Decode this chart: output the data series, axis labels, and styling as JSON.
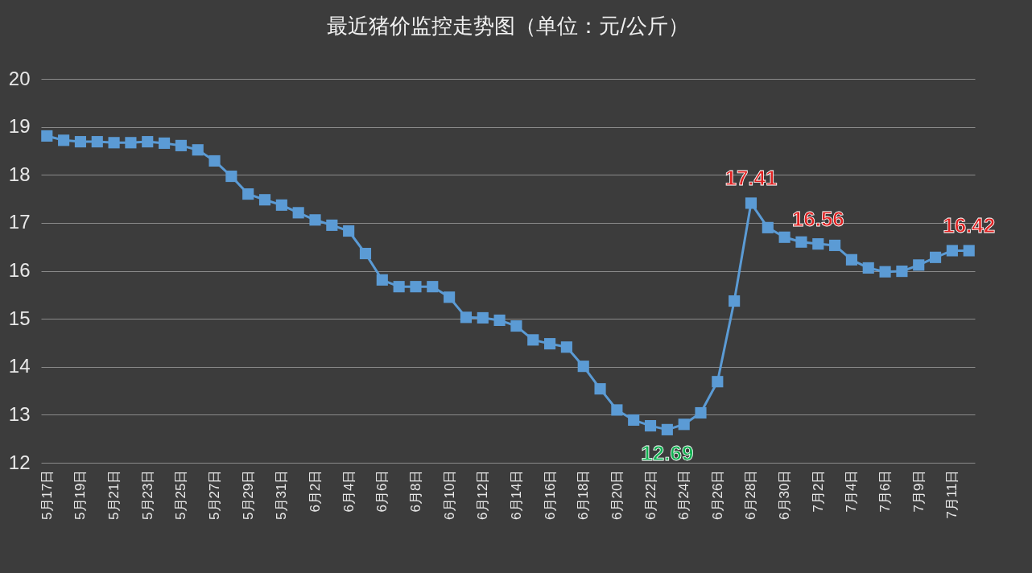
{
  "chart_data": {
    "type": "line",
    "title": "最近猪价监控走势图（单位：元/公斤）",
    "categories": [
      "5月17日",
      null,
      "5月19日",
      null,
      "5月21日",
      null,
      "5月23日",
      null,
      "5月25日",
      null,
      "5月27日",
      null,
      "5月29日",
      null,
      "5月31日",
      null,
      "6月2日",
      null,
      "6月4日",
      null,
      "6月6日",
      null,
      "6月8日",
      null,
      "6月10日",
      null,
      "6月12日",
      null,
      "6月14日",
      null,
      "6月16日",
      null,
      "6月18日",
      null,
      "6月20日",
      null,
      "6月22日",
      null,
      "6月24日",
      null,
      "6月26日",
      null,
      "6月28日",
      null,
      "6月30日",
      null,
      "7月2日",
      null,
      "7月4日",
      null,
      "7月6日",
      null,
      "7月9日",
      null,
      "7月11日",
      null
    ],
    "series": [
      {
        "color": "#5b9bd5",
        "values": [
          18.81,
          18.72,
          18.69,
          18.69,
          18.67,
          18.67,
          18.69,
          18.66,
          18.61,
          18.52,
          18.29,
          17.97,
          17.6,
          17.48,
          17.37,
          17.21,
          17.06,
          16.95,
          16.83,
          16.36,
          15.81,
          15.67,
          15.67,
          15.67,
          15.45,
          15.03,
          15.02,
          14.97,
          14.85,
          14.56,
          14.48,
          14.41,
          14.01,
          13.54,
          13.1,
          12.89,
          12.77,
          12.69,
          12.8,
          13.04,
          13.69,
          15.37,
          17.41,
          16.9,
          16.7,
          16.6,
          16.56,
          16.53,
          16.23,
          16.06,
          15.98,
          15.99,
          16.12,
          16.28,
          16.42,
          16.42
        ],
        "value_labels": [
          null,
          null,
          null,
          null,
          null,
          null,
          null,
          null,
          null,
          null,
          null,
          null,
          null,
          null,
          null,
          null,
          null,
          null,
          null,
          null,
          null,
          null,
          null,
          null,
          null,
          null,
          null,
          null,
          null,
          null,
          null,
          null,
          null,
          null,
          null,
          null,
          null,
          "12.69",
          null,
          null,
          null,
          null,
          "17.41",
          null,
          null,
          null,
          "16.56",
          null,
          null,
          null,
          null,
          null,
          null,
          null,
          null,
          "16.42"
        ]
      }
    ],
    "ylim": [
      12,
      20
    ],
    "yticks": [
      12,
      13,
      14,
      15,
      16,
      17,
      18,
      19,
      20
    ],
    "grid": "y",
    "marker": "square",
    "line_style": "solid"
  }
}
